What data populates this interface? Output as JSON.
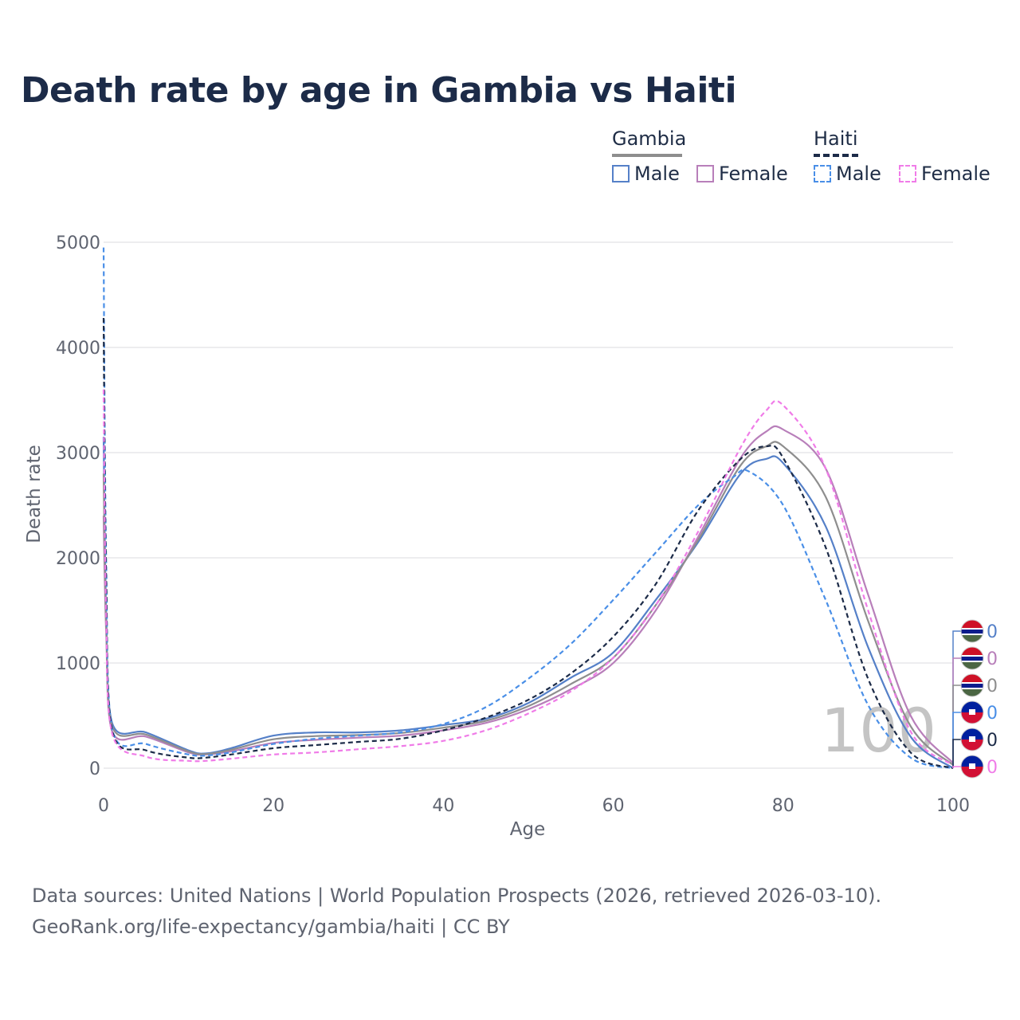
{
  "chart_data": {
    "type": "line",
    "title": "Death rate by age in Gambia vs Haiti",
    "xlabel": "Age",
    "ylabel": "Death rate",
    "xlim": [
      0,
      100
    ],
    "ylim": [
      0,
      5000
    ],
    "x_ticks": [
      "0",
      "20",
      "40",
      "60",
      "80",
      "100"
    ],
    "y_ticks": [
      "0",
      "1000",
      "2000",
      "3000",
      "4000",
      "5000"
    ],
    "grid": true,
    "legend_position": "top-right",
    "watermark": "100",
    "series": [
      {
        "name": "Gambia Male",
        "country": "Gambia",
        "sex": "Male",
        "color": "#5580c8",
        "dash": "solid",
        "end_label": "0",
        "x": [
          0,
          0.3,
          1,
          5,
          10,
          12,
          15,
          20,
          25,
          30,
          35,
          40,
          45,
          50,
          55,
          60,
          65,
          70,
          75,
          78,
          80,
          85,
          90,
          95,
          100
        ],
        "y": [
          3150,
          1500,
          430,
          340,
          170,
          140,
          190,
          310,
          340,
          340,
          360,
          410,
          470,
          620,
          860,
          1100,
          1600,
          2150,
          2800,
          2940,
          2900,
          2300,
          1150,
          300,
          0
        ]
      },
      {
        "name": "Gambia Female",
        "country": "Gambia",
        "sex": "Female",
        "color": "#b87fba",
        "dash": "solid",
        "end_label": "0",
        "x": [
          0,
          0.3,
          1,
          5,
          10,
          12,
          15,
          20,
          25,
          30,
          35,
          40,
          45,
          50,
          55,
          60,
          65,
          70,
          75,
          78,
          80,
          85,
          90,
          95,
          100
        ],
        "y": [
          2400,
          1300,
          350,
          300,
          150,
          130,
          160,
          240,
          270,
          290,
          310,
          360,
          430,
          560,
          750,
          1000,
          1500,
          2200,
          2950,
          3200,
          3220,
          2850,
          1650,
          500,
          50
        ]
      },
      {
        "name": "Gambia (both)",
        "country": "Gambia",
        "sex": "Both",
        "color": "#8e8e8e",
        "dash": "solid",
        "end_label": "0",
        "x": [
          0,
          0.3,
          1,
          5,
          10,
          12,
          15,
          20,
          25,
          30,
          35,
          40,
          45,
          50,
          55,
          60,
          65,
          70,
          75,
          78,
          80,
          85,
          90,
          95,
          100
        ],
        "y": [
          2800,
          1400,
          400,
          320,
          160,
          135,
          175,
          275,
          305,
          315,
          335,
          385,
          450,
          590,
          800,
          1050,
          1550,
          2170,
          2880,
          3060,
          3060,
          2580,
          1400,
          400,
          30
        ]
      },
      {
        "name": "Haiti Male",
        "country": "Haiti",
        "sex": "Male",
        "color": "#4a8fe7",
        "dash": "dashed",
        "end_label": "0",
        "x": [
          0,
          0.3,
          1,
          5,
          10,
          12,
          15,
          20,
          25,
          30,
          35,
          40,
          45,
          50,
          55,
          60,
          65,
          70,
          74,
          76,
          80,
          85,
          90,
          95,
          100
        ],
        "y": [
          4950,
          2000,
          380,
          230,
          130,
          120,
          150,
          230,
          280,
          310,
          340,
          420,
          580,
          850,
          1180,
          1600,
          2050,
          2500,
          2760,
          2820,
          2500,
          1600,
          600,
          100,
          0
        ]
      },
      {
        "name": "Haiti (both)",
        "country": "Haiti",
        "sex": "Both",
        "color": "#1c2b48",
        "dash": "dashed",
        "end_label": "0",
        "x": [
          0,
          0.3,
          1,
          5,
          10,
          12,
          15,
          20,
          25,
          30,
          35,
          40,
          45,
          50,
          55,
          60,
          65,
          70,
          75,
          78,
          80,
          85,
          90,
          95,
          100
        ],
        "y": [
          4280,
          1800,
          360,
          170,
          100,
          100,
          130,
          190,
          220,
          250,
          280,
          360,
          480,
          650,
          900,
          1250,
          1750,
          2450,
          2940,
          3060,
          2950,
          2100,
          850,
          150,
          0
        ]
      },
      {
        "name": "Haiti Female",
        "country": "Haiti",
        "sex": "Female",
        "color": "#f07ce8",
        "dash": "dashed",
        "end_label": "0",
        "x": [
          0,
          0.3,
          1,
          5,
          10,
          12,
          15,
          20,
          25,
          30,
          35,
          40,
          45,
          50,
          55,
          60,
          65,
          70,
          75,
          78,
          80,
          85,
          90,
          95,
          100
        ],
        "y": [
          3600,
          1500,
          330,
          110,
          70,
          70,
          90,
          130,
          150,
          180,
          210,
          260,
          360,
          520,
          730,
          1050,
          1550,
          2250,
          3050,
          3400,
          3450,
          2850,
          1500,
          350,
          30
        ]
      }
    ]
  },
  "legend": {
    "gambia": {
      "title": "Gambia",
      "male": "Male",
      "female": "Female"
    },
    "haiti": {
      "title": "Haiti",
      "male": "Male",
      "female": "Female"
    }
  },
  "sources": {
    "line1": "Data sources: United Nations | World Population Prospects (2026, retrieved 2026-03-10).",
    "line2": "GeoRank.org/life-expectancy/gambia/haiti | CC BY"
  }
}
